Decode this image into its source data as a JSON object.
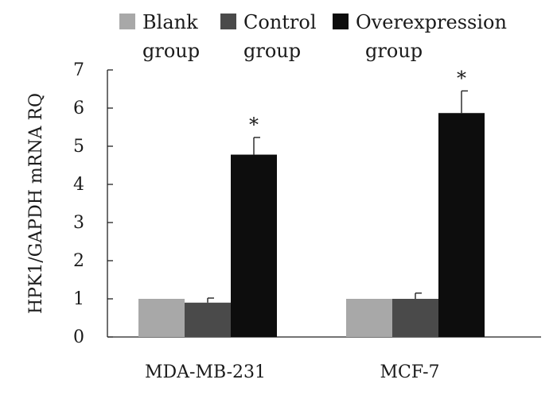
{
  "chart_data": {
    "type": "bar",
    "title": "",
    "xlabel": "",
    "ylabel": "HPK1/GAPDH mRNA RQ",
    "ylim": [
      0,
      7
    ],
    "yticks": [
      0,
      1,
      2,
      3,
      4,
      5,
      6,
      7
    ],
    "categories": [
      "MDA-MB-231",
      "MCF-7"
    ],
    "series": [
      {
        "name_lines": [
          "Blank",
          "group"
        ],
        "name": "Blank group",
        "color": "#a8a8a8",
        "values": [
          1.0,
          1.0
        ],
        "errors": [
          0.0,
          0.0
        ],
        "significance": [
          "",
          ""
        ]
      },
      {
        "name_lines": [
          "Control",
          "group"
        ],
        "name": "Control group",
        "color": "#4a4a4a",
        "values": [
          0.9,
          1.0
        ],
        "errors": [
          0.12,
          0.15
        ],
        "significance": [
          "",
          ""
        ]
      },
      {
        "name_lines": [
          "Overexpression",
          "group"
        ],
        "name": "Overexpression group",
        "color": "#0d0d0d",
        "values": [
          4.78,
          5.87
        ],
        "errors": [
          0.45,
          0.58
        ],
        "significance": [
          "*",
          "*"
        ]
      }
    ],
    "legend_position": "top"
  }
}
